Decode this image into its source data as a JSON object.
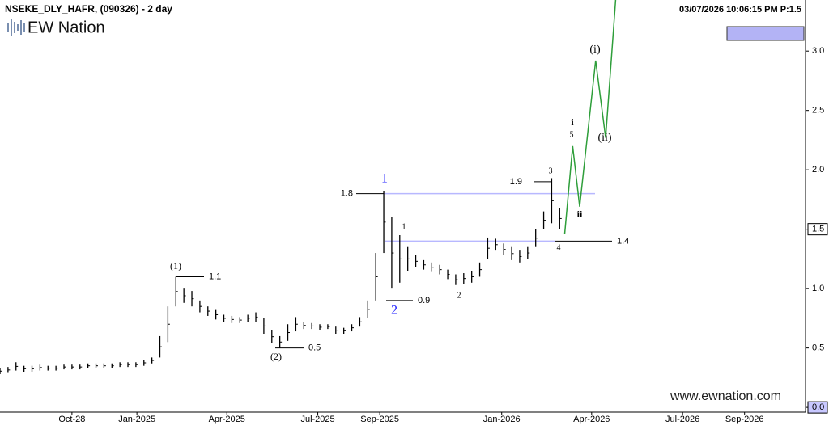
{
  "chart_data": {
    "type": "ohlc",
    "title": "NSEKE_DLY_HAFR, (090326) - 2 day",
    "timestamp": "03/07/2026 10:06:15 PM  P:1.5",
    "logo": "EW Nation",
    "watermark": "www.ewnation.com",
    "color": "#000000",
    "x": [
      -72,
      -64,
      -56,
      -48,
      -40,
      -32,
      -24,
      -16,
      -8,
      0,
      8,
      16,
      24,
      32,
      40,
      48,
      56,
      64,
      72,
      80,
      88,
      96,
      104,
      112,
      120,
      128,
      136,
      144,
      152,
      160,
      168,
      176,
      184,
      192,
      200,
      208,
      216,
      224,
      232,
      240,
      248,
      256,
      264,
      272,
      280,
      288,
      296,
      304,
      312,
      320,
      328,
      336,
      344,
      352,
      360,
      368,
      376,
      384,
      392,
      400,
      408,
      416,
      424,
      432,
      440,
      448,
      456,
      464,
      472,
      480,
      488
    ],
    "high": [
      0.33,
      0.34,
      0.38,
      0.35,
      0.35,
      0.36,
      0.35,
      0.35,
      0.36,
      0.36,
      0.36,
      0.37,
      0.37,
      0.37,
      0.37,
      0.38,
      0.38,
      0.38,
      0.4,
      0.42,
      0.6,
      0.85,
      1.1,
      1.0,
      0.98,
      0.9,
      0.85,
      0.82,
      0.78,
      0.77,
      0.76,
      0.78,
      0.8,
      0.75,
      0.65,
      0.6,
      0.7,
      0.76,
      0.72,
      0.71,
      0.7,
      0.7,
      0.68,
      0.67,
      0.7,
      0.76,
      0.9,
      1.3,
      1.82,
      1.6,
      1.45,
      1.35,
      1.28,
      1.24,
      1.22,
      1.2,
      1.16,
      1.12,
      1.13,
      1.15,
      1.22,
      1.43,
      1.42,
      1.38,
      1.35,
      1.32,
      1.35,
      1.5,
      1.65,
      1.93,
      1.68
    ],
    "low": [
      0.28,
      0.29,
      0.31,
      0.3,
      0.3,
      0.31,
      0.31,
      0.31,
      0.32,
      0.32,
      0.32,
      0.33,
      0.33,
      0.33,
      0.33,
      0.34,
      0.34,
      0.34,
      0.35,
      0.37,
      0.42,
      0.55,
      0.85,
      0.88,
      0.85,
      0.8,
      0.77,
      0.74,
      0.72,
      0.71,
      0.71,
      0.72,
      0.72,
      0.62,
      0.54,
      0.5,
      0.56,
      0.64,
      0.66,
      0.66,
      0.65,
      0.66,
      0.62,
      0.62,
      0.64,
      0.68,
      0.75,
      0.9,
      1.3,
      1.0,
      1.05,
      1.15,
      1.18,
      1.16,
      1.14,
      1.12,
      1.08,
      1.03,
      1.04,
      1.05,
      1.1,
      1.25,
      1.32,
      1.28,
      1.24,
      1.22,
      1.25,
      1.35,
      1.5,
      1.55,
      1.5
    ],
    "projection": {
      "color": "#2e9e3a",
      "x": [
        493,
        501,
        508,
        524,
        534,
        544
      ],
      "values": [
        1.46,
        2.2,
        1.69,
        2.92,
        2.27,
        3.43
      ]
    },
    "levels": [
      1.1,
      0.5,
      1.8,
      0.9,
      1.9,
      1.4
    ],
    "level_color": "#b8b8ff",
    "annotations": [
      "(1)",
      "(2)",
      "1",
      "2",
      "1",
      "2",
      "3",
      "4",
      "5",
      "i",
      "ii",
      "(i)",
      "(ii)"
    ],
    "xlim": [
      -72,
      734
    ],
    "ylim": [
      -0.04,
      3.43
    ],
    "xticks": [
      {
        "value": 0,
        "label": "Oct-28"
      },
      {
        "value": 65,
        "label": "Jan-2025"
      },
      {
        "value": 155,
        "label": "Apr-2025"
      },
      {
        "value": 246,
        "label": "Jul-2025"
      },
      {
        "value": 308,
        "label": "Sep-2025"
      },
      {
        "value": 430,
        "label": "Jan-2026"
      },
      {
        "value": 520,
        "label": "Apr-2026"
      },
      {
        "value": 611,
        "label": "Jul-2026"
      },
      {
        "value": 673,
        "label": "Sep-2026"
      }
    ],
    "yticks": [
      {
        "value": 0,
        "label": "0.0"
      },
      0.5,
      {
        "value": 1,
        "label": "1.0"
      },
      1.5,
      {
        "value": 2,
        "label": "2.0"
      },
      2.5,
      {
        "value": 3,
        "label": "3.0"
      }
    ]
  }
}
